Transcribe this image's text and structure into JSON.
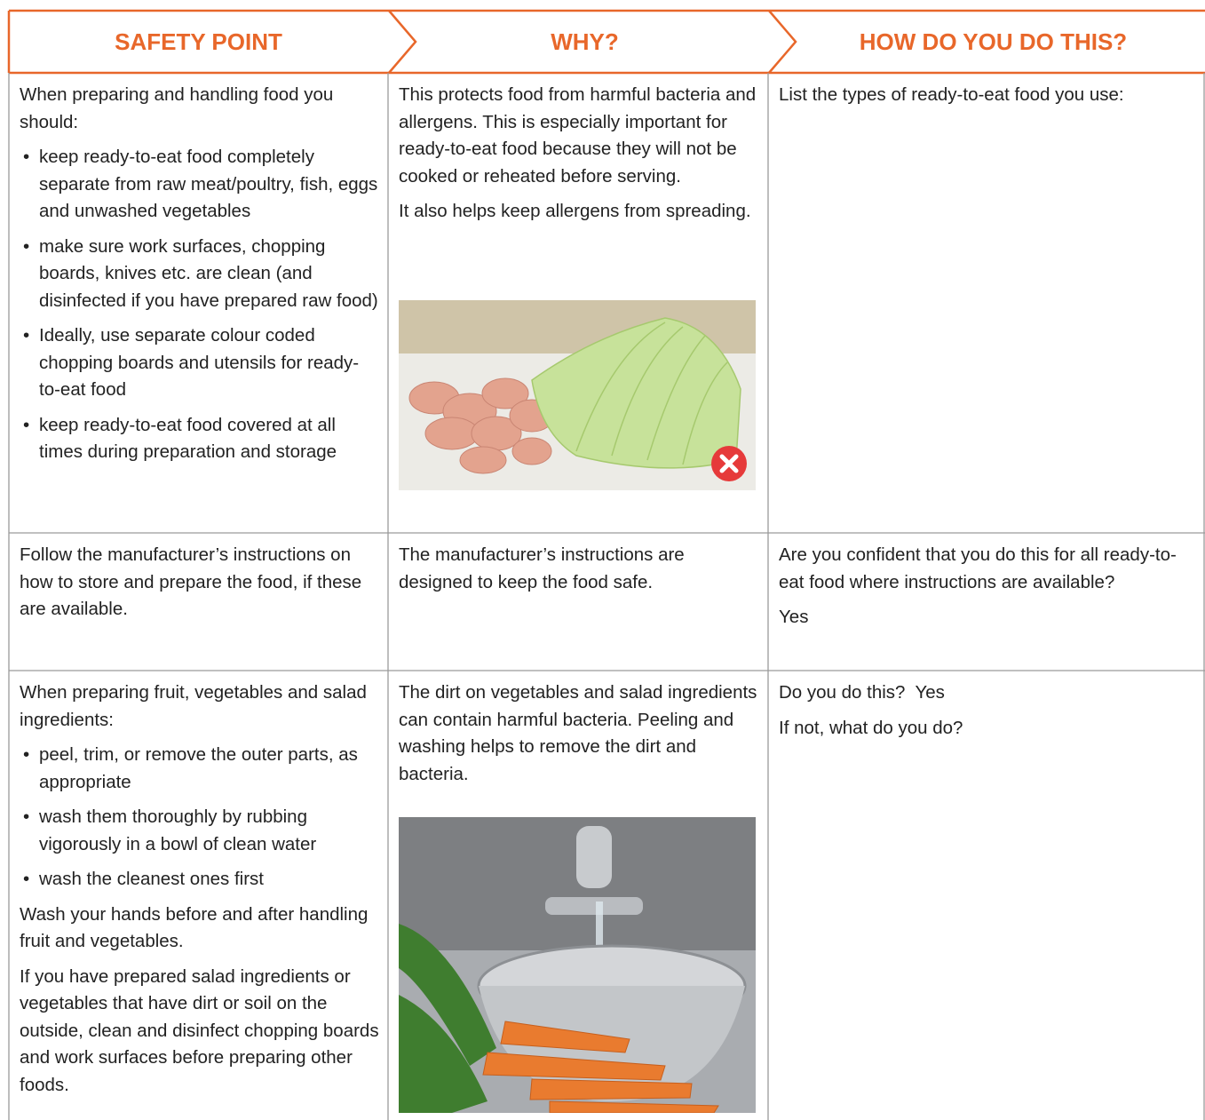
{
  "table": {
    "headers": [
      "SAFETY POINT",
      "WHY?",
      "HOW DO YOU DO THIS?"
    ],
    "rows": [
      [
        {
          "blocks": [
            {
              "paragraph": "When preparing and handling food you should:"
            },
            {
              "list": [
                "keep ready-to-eat food completely separate from raw meat/poultry, fish, eggs and unwashed vegetables",
                "make sure work surfaces, chopping boards, knives etc. are clean (and disinfected if you have prepared raw food)",
                "Ideally, use separate colour coded chopping boards and utensils for ready-to-eat food",
                "keep ready-to-eat food covered at all times during preparation and storage"
              ]
            }
          ]
        },
        {
          "blocks": [
            {
              "paragraph": "This protects food from harmful bacteria and allergens. This is especially important for ready-to-eat food because they will not be cooked or reheated before serving."
            },
            {
              "paragraph": "It also helps keep allergens from spreading."
            }
          ]
        },
        {
          "blocks": [
            {
              "paragraph": "List the types of ready-to-eat food you use:"
            }
          ]
        }
      ],
      [
        {
          "blocks": [
            {
              "paragraph": "Follow the manufacturer’s instructions on how to store and prepare the food, if these are available."
            }
          ]
        },
        {
          "blocks": [
            {
              "paragraph": "The manufacturer’s instructions are designed to keep the food safe."
            }
          ]
        },
        {
          "blocks": [
            {
              "paragraph": "Are you confident that you do this for all ready-to-eat food where instructions are available?"
            },
            {
              "paragraph": "Yes"
            }
          ]
        }
      ],
      [
        {
          "blocks": [
            {
              "paragraph": "When preparing fruit, vegetables and salad ingredients:"
            },
            {
              "list": [
                "peel, trim, or remove the outer parts, as appropriate",
                "wash them thoroughly by rubbing vigorously in a bowl of clean water",
                "wash the cleanest ones first"
              ]
            },
            {
              "paragraph": "Wash your hands before and after handling fruit and vegetables."
            },
            {
              "paragraph": "If you have prepared salad ingredients or vegetables that have dirt or soil on the outside, clean and disinfect chopping boards and work surfaces before preparing other foods."
            }
          ]
        },
        {
          "blocks": [
            {
              "paragraph": "The dirt on vegetables and salad ingredients can contain harmful bacteria. Peeling and washing helps to remove the dirt and bacteria."
            }
          ]
        },
        {
          "blocks": [
            {
              "paragraph": "Do you do this?  Yes"
            },
            {
              "paragraph": "If not, what do you do?"
            }
          ]
        }
      ]
    ]
  }
}
